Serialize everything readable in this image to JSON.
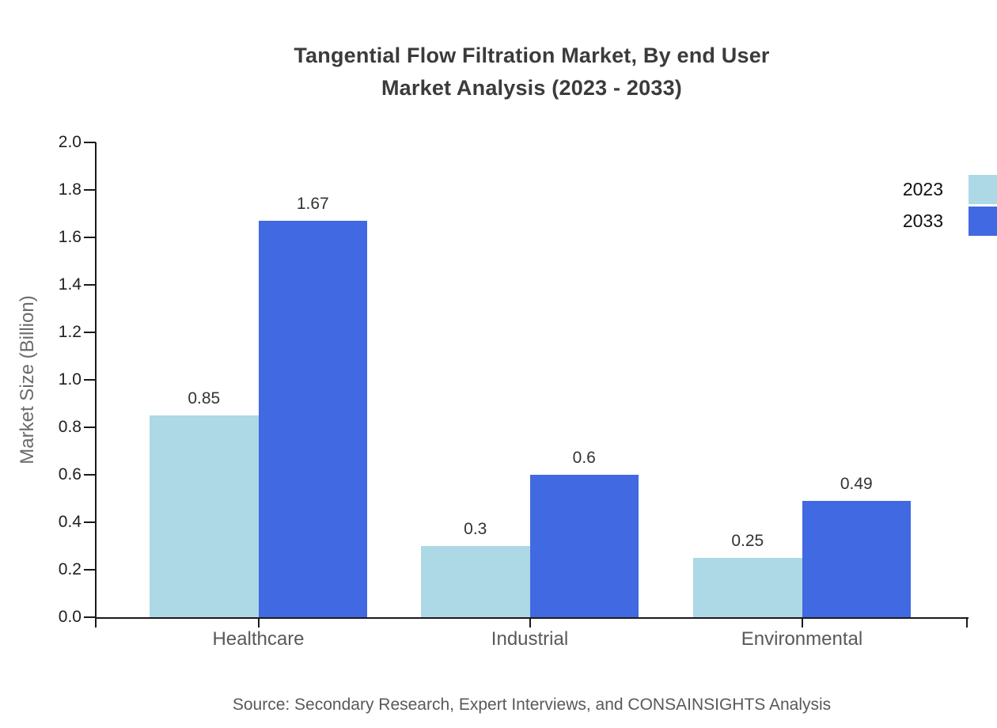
{
  "chart_data": {
    "type": "bar",
    "title": "Tangential Flow Filtration Market, By end User\nMarket Analysis (2023 - 2033)",
    "categories": [
      "Healthcare",
      "Industrial",
      "Environmental"
    ],
    "series": [
      {
        "name": "2023",
        "color": "#add8e6",
        "values": [
          0.85,
          0.3,
          0.25
        ]
      },
      {
        "name": "2033",
        "color": "#4169e1",
        "values": [
          1.67,
          0.6,
          0.49
        ]
      }
    ],
    "value_labels": [
      [
        "0.85",
        "0.3",
        "0.25"
      ],
      [
        "1.67",
        "0.6",
        "0.49"
      ]
    ],
    "xlabel": "",
    "ylabel": "Market Size (Billion)",
    "ylim": [
      0.0,
      2.0
    ],
    "ytick_step": 0.2,
    "ytick_labels": [
      "0.0",
      "0.2",
      "0.4",
      "0.6",
      "0.8",
      "1.0",
      "1.2",
      "1.4",
      "1.6",
      "1.8",
      "2.0"
    ],
    "grid": false,
    "legend_position": "right",
    "source": "Source: Secondary Research, Expert Interviews, and CONSAINSIGHTS Analysis"
  },
  "colors": {
    "axis": "#1a1a1a",
    "title_text": "#3b3b3b",
    "category_text": "#595959",
    "value_text": "#333333",
    "ylabel_text": "#6b6b6b",
    "source_text": "#595959",
    "series_2023": "#add8e6",
    "series_2033": "#4169e1"
  }
}
